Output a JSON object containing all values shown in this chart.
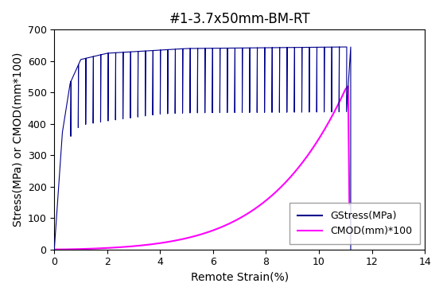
{
  "title": "#1-3.7x50mm-BM-RT",
  "xlabel": "Remote Strain(%)",
  "ylabel": "Stress(MPa) or CMOD(mm*100)",
  "xlim": [
    0,
    14
  ],
  "ylim": [
    0,
    700
  ],
  "xticks": [
    0,
    2,
    4,
    6,
    8,
    10,
    12,
    14
  ],
  "yticks": [
    0,
    100,
    200,
    300,
    400,
    500,
    600,
    700
  ],
  "stress_color": "#00008B",
  "cmod_color": "#FF00FF",
  "legend_stress": "GStress(MPa)",
  "legend_cmod": "CMOD(mm)*100",
  "title_fontsize": 12,
  "label_fontsize": 10,
  "legend_fontsize": 9,
  "num_cycles": 38,
  "background_color": "#ffffff"
}
